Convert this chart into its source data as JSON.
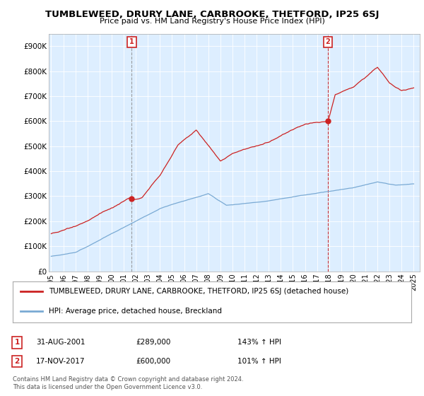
{
  "title": "TUMBLEWEED, DRURY LANE, CARBROOKE, THETFORD, IP25 6SJ",
  "subtitle": "Price paid vs. HM Land Registry's House Price Index (HPI)",
  "ylim": [
    0,
    950000
  ],
  "yticks": [
    0,
    100000,
    200000,
    300000,
    400000,
    500000,
    600000,
    700000,
    800000,
    900000
  ],
  "ytick_labels": [
    "£0",
    "£100K",
    "£200K",
    "£300K",
    "£400K",
    "£500K",
    "£600K",
    "£700K",
    "£800K",
    "£900K"
  ],
  "hpi_color": "#7aaad4",
  "price_color": "#cc2222",
  "marker1_date": 2001.667,
  "marker1_price": 289000,
  "marker1_text": "31-AUG-2001",
  "marker1_amount": "£289,000",
  "marker1_hpi": "143% ↑ HPI",
  "marker2_date": 2017.88,
  "marker2_price": 600000,
  "marker2_text": "17-NOV-2017",
  "marker2_amount": "£600,000",
  "marker2_hpi": "101% ↑ HPI",
  "legend_line1": "TUMBLEWEED, DRURY LANE, CARBROOKE, THETFORD, IP25 6SJ (detached house)",
  "legend_line2": "HPI: Average price, detached house, Breckland",
  "footer1": "Contains HM Land Registry data © Crown copyright and database right 2024.",
  "footer2": "This data is licensed under the Open Government Licence v3.0.",
  "background_color": "#ffffff",
  "plot_bg_color": "#ddeeff",
  "grid_color": "#ffffff"
}
